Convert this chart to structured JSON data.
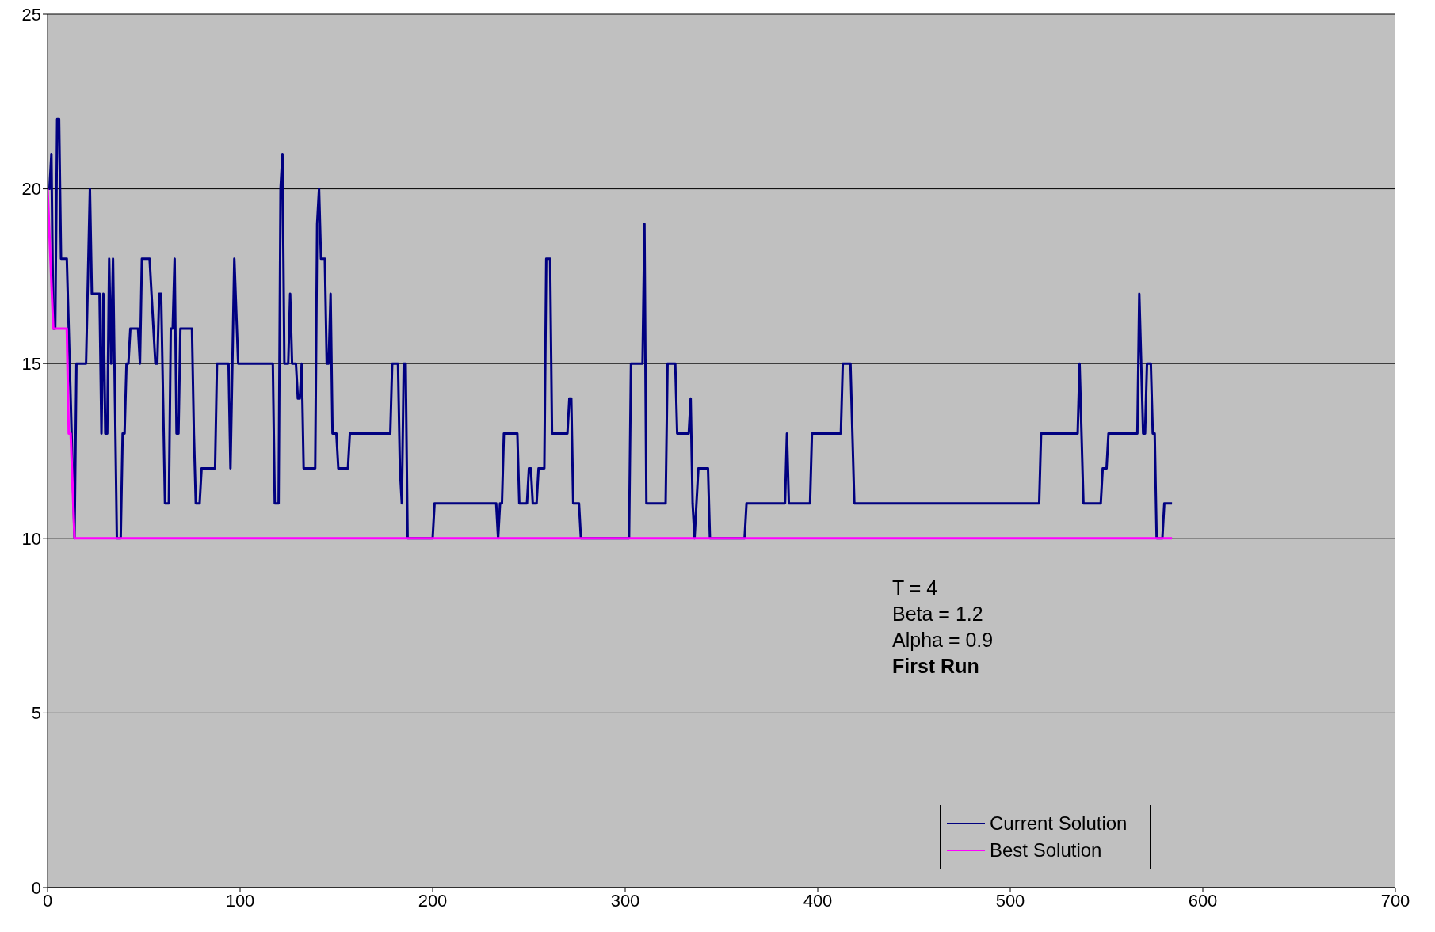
{
  "chart_data": {
    "type": "line",
    "xlim": [
      0,
      700
    ],
    "xticks": [
      0,
      100,
      200,
      300,
      400,
      500,
      600,
      700
    ],
    "ylim": [
      0,
      25
    ],
    "yticks": [
      0,
      5,
      10,
      15,
      20,
      25
    ],
    "grid": "y",
    "legend": "bottom right",
    "marker": "none",
    "line_style": "solid",
    "annotations": [
      "T = 4",
      "Beta = 1.2",
      "Alpha = 0.9",
      "First Run"
    ],
    "series": [
      {
        "name": "Current Solution",
        "color": "#000080",
        "x": [
          0,
          1,
          2,
          3,
          4,
          5,
          6,
          7,
          10,
          14,
          15,
          20,
          22,
          23,
          27,
          28,
          29,
          30,
          31,
          32,
          33,
          34,
          36,
          38,
          39,
          40,
          41,
          42,
          43,
          47,
          48,
          49,
          53,
          54,
          56,
          57,
          58,
          59,
          61,
          63,
          64,
          65,
          66,
          67,
          68,
          69,
          75,
          76,
          77,
          79,
          80,
          87,
          88,
          94,
          95,
          97,
          99,
          117,
          118,
          120,
          121,
          122,
          123,
          125,
          126,
          127,
          129,
          130,
          131,
          132,
          133,
          139,
          140,
          141,
          142,
          144,
          145,
          146,
          147,
          148,
          150,
          151,
          156,
          157,
          178,
          179,
          182,
          183,
          184,
          185,
          186,
          187,
          200,
          201,
          233,
          234,
          235,
          236,
          237,
          244,
          245,
          249,
          250,
          251,
          252,
          254,
          255,
          258,
          259,
          261,
          262,
          270,
          271,
          272,
          273,
          276,
          277,
          302,
          303,
          309,
          310,
          311,
          321,
          322,
          326,
          327,
          333,
          334,
          335,
          336,
          338,
          343,
          344,
          362,
          363,
          383,
          384,
          385,
          396,
          397,
          412,
          413,
          417,
          419,
          515,
          516,
          535,
          536,
          538,
          547,
          548,
          550,
          551,
          566,
          567,
          569,
          570,
          571,
          573,
          574,
          575,
          576,
          579,
          580,
          584
        ],
        "values": [
          20,
          20,
          21,
          16,
          16,
          22,
          22,
          18,
          18,
          10,
          15,
          15,
          20,
          17,
          17,
          13,
          17,
          13,
          13,
          18,
          15,
          18,
          10,
          10,
          13,
          13,
          15,
          15,
          16,
          16,
          15,
          18,
          18,
          17,
          15,
          15,
          17,
          17,
          11,
          11,
          16,
          16,
          18,
          13,
          13,
          16,
          16,
          13,
          11,
          11,
          12,
          12,
          15,
          15,
          12,
          18,
          15,
          15,
          11,
          11,
          20,
          21,
          15,
          15,
          17,
          15,
          15,
          14,
          14,
          15,
          12,
          12,
          19,
          20,
          18,
          18,
          15,
          15,
          17,
          13,
          13,
          12,
          12,
          13,
          13,
          15,
          15,
          12,
          11,
          15,
          15,
          10,
          10,
          11,
          11,
          10,
          11,
          11,
          13,
          13,
          11,
          11,
          12,
          12,
          11,
          11,
          12,
          12,
          18,
          18,
          13,
          13,
          14,
          14,
          11,
          11,
          10,
          10,
          15,
          15,
          19,
          11,
          11,
          15,
          15,
          13,
          13,
          14,
          11,
          10,
          12,
          12,
          10,
          10,
          11,
          11,
          13,
          11,
          11,
          13,
          13,
          15,
          15,
          11,
          11,
          13,
          13,
          15,
          11,
          11,
          12,
          12,
          13,
          13,
          17,
          13,
          13,
          15,
          15,
          13,
          13,
          10,
          10,
          11,
          11
        ]
      },
      {
        "name": "Best Solution",
        "color": "#ff00ff",
        "x": [
          0,
          3,
          10,
          11,
          12,
          14,
          584
        ],
        "values": [
          20,
          16,
          16,
          13,
          13,
          10,
          10
        ]
      }
    ]
  }
}
